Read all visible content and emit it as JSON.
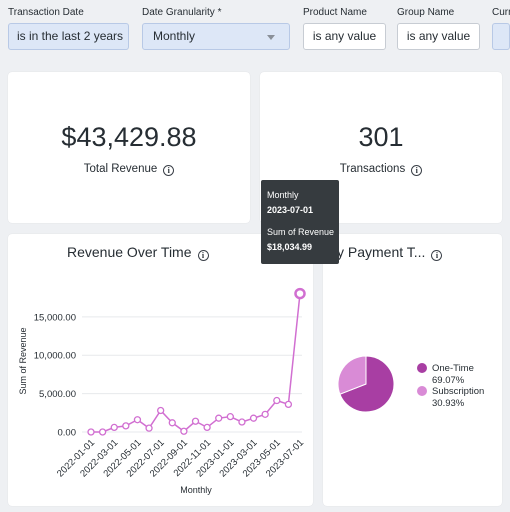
{
  "filters": [
    {
      "label": "Transaction Date",
      "value": "is in the last 2 years"
    },
    {
      "label": "Date Granularity *",
      "value": "Monthly"
    },
    {
      "label": "Product Name",
      "value": "is any value"
    },
    {
      "label": "Group Name",
      "value": "is any value"
    },
    {
      "label": "Curr",
      "value": ""
    }
  ],
  "kpis": {
    "revenue": {
      "value": "$43,429.88",
      "label": "Total Revenue"
    },
    "transactions": {
      "value": "301",
      "label": "Transactions"
    }
  },
  "info_glyph": "i",
  "revenue_chart": {
    "title": "Revenue Over Time",
    "tooltip": {
      "line1": "Monthly",
      "line2": "2023-07-01",
      "line3": "Sum of Revenue",
      "line4": "$18,034.99"
    }
  },
  "payment_chart": {
    "title": "y Payment T..."
  },
  "colors": {
    "line": "#d16fd1",
    "pie_one_time": "#a83ea3",
    "pie_subscription": "#d98bd6",
    "grid": "#e7e9ec"
  },
  "chart_data": [
    {
      "type": "line",
      "title": "Revenue Over Time",
      "xlabel": "Monthly",
      "ylabel": "Sum of Revenue",
      "x": [
        "2022-01-01",
        "2022-02-01",
        "2022-03-01",
        "2022-04-01",
        "2022-05-01",
        "2022-06-01",
        "2022-07-01",
        "2022-08-01",
        "2022-09-01",
        "2022-10-01",
        "2022-11-01",
        "2022-12-01",
        "2023-01-01",
        "2023-02-01",
        "2023-03-01",
        "2023-04-01",
        "2023-05-01",
        "2023-06-01",
        "2023-07-01"
      ],
      "x_tick_labels": [
        "2022-01-01",
        "2022-03-01",
        "2022-05-01",
        "2022-07-01",
        "2022-09-01",
        "2022-11-01",
        "2023-01-01",
        "2023-03-01",
        "2023-05-01",
        "2023-07-01"
      ],
      "y": [
        0,
        0,
        600,
        800,
        1600,
        500,
        2800,
        1200,
        100,
        1400,
        600,
        1800,
        2000,
        1300,
        1800,
        2300,
        4100,
        3600,
        18034.99
      ],
      "ylim": [
        0,
        18500
      ],
      "y_ticks": [
        0,
        5000,
        10000,
        15000
      ],
      "y_tick_labels": [
        "0.00",
        "5,000.00",
        "10,000.00",
        "15,000.00"
      ],
      "grid": true
    },
    {
      "type": "pie",
      "title": "y Payment T...",
      "labels": [
        "One-Time",
        "Subscription"
      ],
      "values": [
        69.07,
        30.93
      ],
      "value_labels": [
        "69.07%",
        "30.93%"
      ],
      "legend": "right"
    }
  ]
}
